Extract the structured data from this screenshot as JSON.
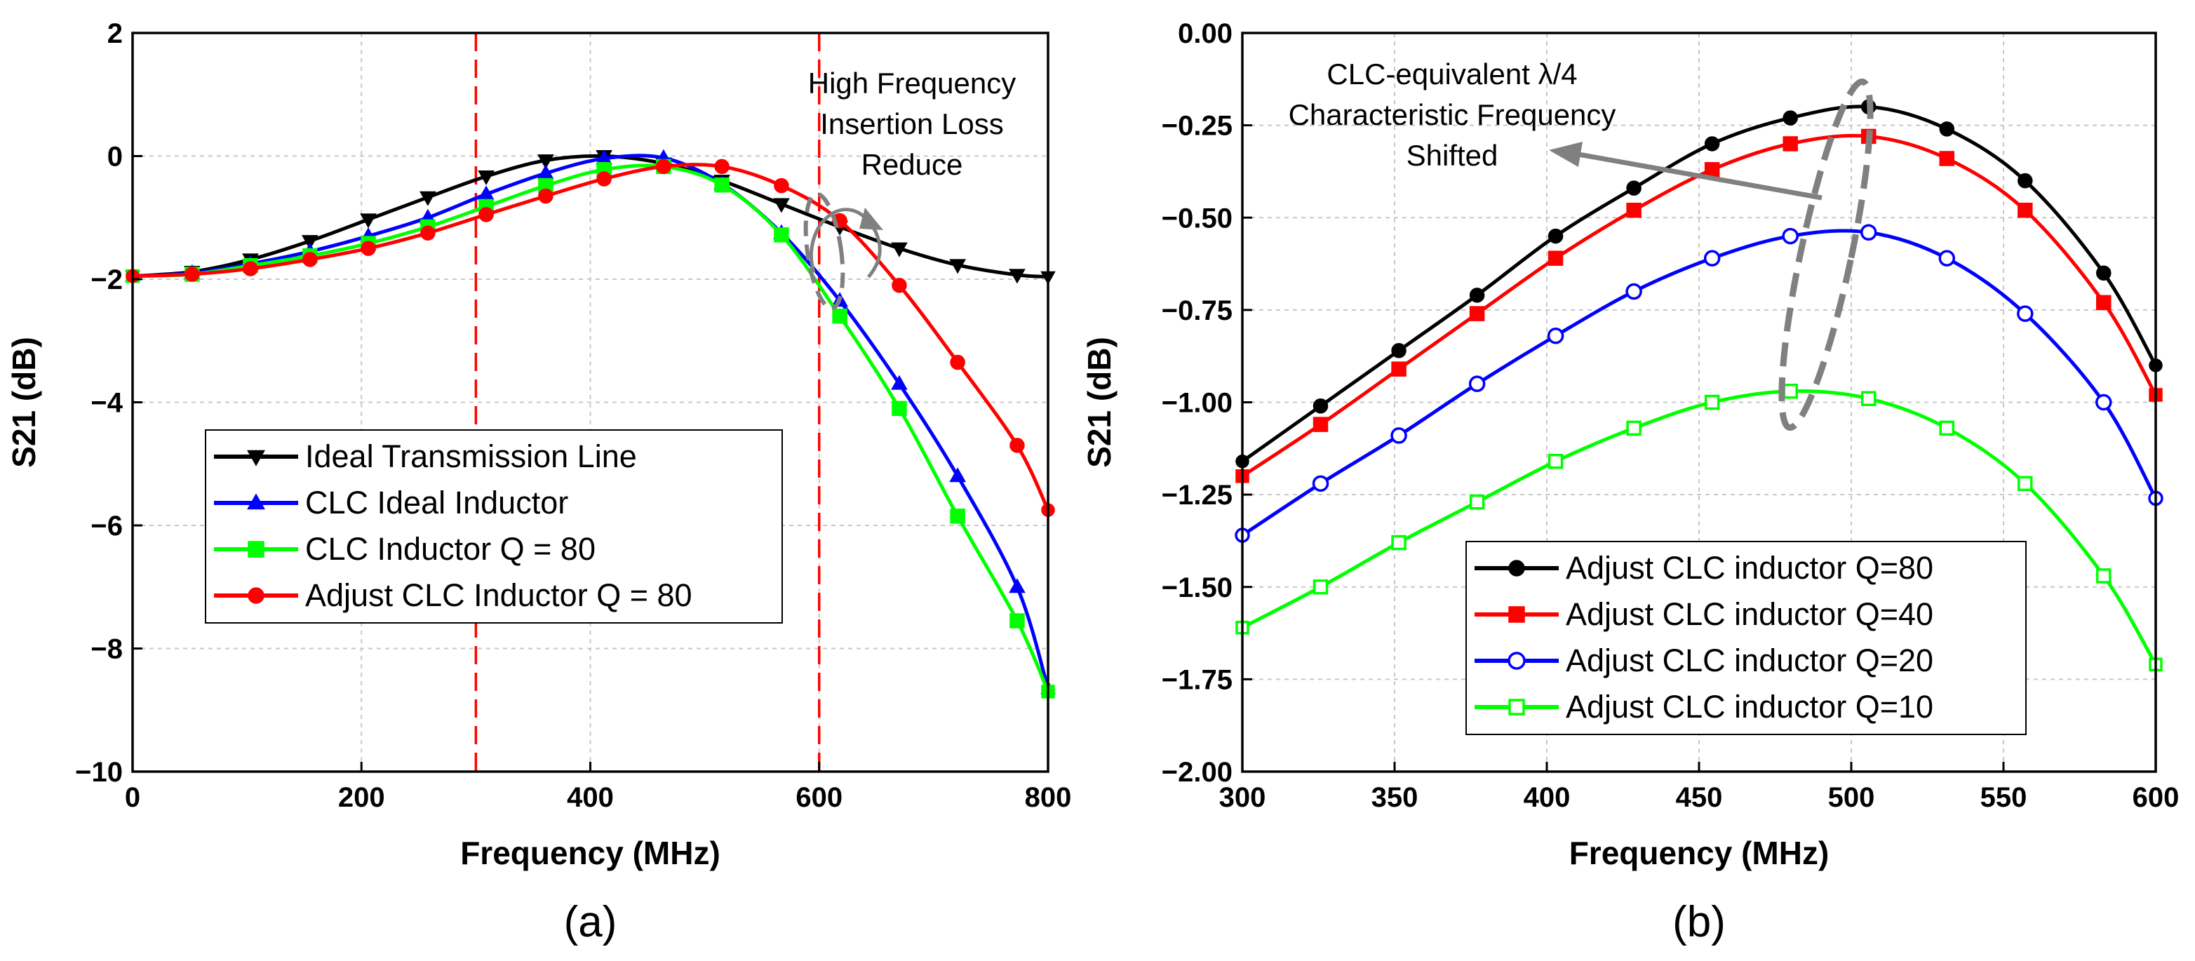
{
  "chart_data": [
    {
      "panel": "(a)",
      "type": "line",
      "xlabel": "Frequency (MHz)",
      "ylabel": "S21 (dB)",
      "xlim": [
        0,
        800
      ],
      "ylim": [
        -10,
        2
      ],
      "xticks": [
        0,
        200,
        400,
        600,
        800
      ],
      "yticks": [
        -10,
        -8,
        -6,
        -4,
        -2,
        0,
        2
      ],
      "tick_labels_x": [
        "0",
        "200",
        "400",
        "600",
        "800"
      ],
      "tick_labels_y": [
        "−10",
        "−8",
        "−6",
        "−4",
        "−2",
        "0",
        "2"
      ],
      "grid": true,
      "legend_position": "bottom-left",
      "vlines": [
        300,
        600
      ],
      "annotation": {
        "lines": [
          "High Frequency",
          "Insertion Loss",
          "Reduce"
        ],
        "near_x": 600,
        "near_y": -1.5
      },
      "series": [
        {
          "name": "Ideal Transmission Line",
          "color": "#000000",
          "marker": "triangle-down",
          "x": [
            0,
            52,
            103,
            155,
            206,
            258,
            309,
            361,
            412,
            464,
            515,
            567,
            618,
            670,
            721,
            773,
            800
          ],
          "y": [
            -1.95,
            -1.88,
            -1.68,
            -1.38,
            -1.03,
            -0.67,
            -0.33,
            -0.07,
            0.0,
            -0.12,
            -0.4,
            -0.78,
            -1.15,
            -1.5,
            -1.77,
            -1.93,
            -1.96
          ]
        },
        {
          "name": "CLC Ideal Inductor",
          "color": "#0000ff",
          "marker": "triangle-up",
          "x": [
            0,
            52,
            103,
            155,
            206,
            258,
            309,
            361,
            412,
            464,
            515,
            567,
            618,
            670,
            721,
            773,
            800
          ],
          "y": [
            -1.95,
            -1.9,
            -1.75,
            -1.55,
            -1.3,
            -1.0,
            -0.62,
            -0.28,
            -0.04,
            -0.03,
            -0.45,
            -1.25,
            -2.35,
            -3.7,
            -5.2,
            -7.0,
            -8.65
          ]
        },
        {
          "name": "CLC Inductor Q = 80",
          "color": "#00ff00",
          "marker": "square",
          "x": [
            0,
            52,
            103,
            155,
            206,
            258,
            309,
            361,
            412,
            464,
            515,
            567,
            618,
            670,
            721,
            773,
            800
          ],
          "y": [
            -1.95,
            -1.92,
            -1.78,
            -1.62,
            -1.42,
            -1.15,
            -0.82,
            -0.48,
            -0.22,
            -0.17,
            -0.47,
            -1.28,
            -2.6,
            -4.1,
            -5.85,
            -7.55,
            -8.7
          ]
        },
        {
          "name": "Adjust CLC Inductor Q = 80",
          "color": "#ff0000",
          "marker": "circle",
          "x": [
            0,
            52,
            103,
            155,
            206,
            258,
            309,
            361,
            412,
            464,
            515,
            567,
            618,
            670,
            721,
            773,
            800
          ],
          "y": [
            -1.95,
            -1.92,
            -1.83,
            -1.68,
            -1.5,
            -1.25,
            -0.95,
            -0.65,
            -0.37,
            -0.17,
            -0.17,
            -0.48,
            -1.05,
            -2.1,
            -3.35,
            -4.7,
            -5.75
          ]
        }
      ]
    },
    {
      "panel": "(b)",
      "type": "line",
      "xlabel": "Frequency (MHz)",
      "ylabel": "S21 (dB)",
      "xlim": [
        300,
        600
      ],
      "ylim": [
        -2.0,
        0.0
      ],
      "xticks": [
        300,
        350,
        400,
        450,
        500,
        550,
        600
      ],
      "yticks": [
        -2.0,
        -1.75,
        -1.5,
        -1.25,
        -1.0,
        -0.75,
        -0.5,
        -0.25,
        0.0
      ],
      "tick_labels_x": [
        "300",
        "350",
        "400",
        "450",
        "500",
        "550",
        "600"
      ],
      "tick_labels_y": [
        "−2.00",
        "−1.75",
        "−1.50",
        "−1.25",
        "−1.00",
        "−0.75",
        "−0.50",
        "−0.25",
        "0.00"
      ],
      "grid": true,
      "legend_position": "bottom-center",
      "annotation": {
        "lines": [
          "CLC-equivalent λ/4",
          "Characteristic Frequency",
          "Shifted"
        ],
        "near_x": 490,
        "near_y": -0.45
      },
      "series": [
        {
          "name": "Adjust CLC inductor Q=80",
          "color": "#000000",
          "marker": "circle",
          "x": [
            300,
            325.7,
            351.4,
            377.1,
            402.9,
            428.6,
            454.3,
            480,
            505.7,
            531.4,
            557.1,
            582.9,
            600
          ],
          "y": [
            -1.16,
            -1.01,
            -0.86,
            -0.71,
            -0.55,
            -0.42,
            -0.3,
            -0.23,
            -0.2,
            -0.26,
            -0.4,
            -0.65,
            -0.9
          ]
        },
        {
          "name": "Adjust CLC inductor Q=40",
          "color": "#ff0000",
          "marker": "square",
          "x": [
            300,
            325.7,
            351.4,
            377.1,
            402.9,
            428.6,
            454.3,
            480,
            505.7,
            531.4,
            557.1,
            582.9,
            600
          ],
          "y": [
            -1.2,
            -1.06,
            -0.91,
            -0.76,
            -0.61,
            -0.48,
            -0.37,
            -0.3,
            -0.28,
            -0.34,
            -0.48,
            -0.73,
            -0.98
          ]
        },
        {
          "name": "Adjust CLC inductor Q=20",
          "color": "#0000ff",
          "marker": "circle-open",
          "x": [
            300,
            325.7,
            351.4,
            377.1,
            402.9,
            428.6,
            454.3,
            480,
            505.7,
            531.4,
            557.1,
            582.9,
            600
          ],
          "y": [
            -1.36,
            -1.22,
            -1.09,
            -0.95,
            -0.82,
            -0.7,
            -0.61,
            -0.55,
            -0.54,
            -0.61,
            -0.76,
            -1.0,
            -1.26
          ]
        },
        {
          "name": "Adjust CLC inductor Q=10",
          "color": "#00ff00",
          "marker": "square-open",
          "x": [
            300,
            325.7,
            351.4,
            377.1,
            402.9,
            428.6,
            454.3,
            480,
            505.7,
            531.4,
            557.1,
            582.9,
            600
          ],
          "y": [
            -1.61,
            -1.5,
            -1.38,
            -1.27,
            -1.16,
            -1.07,
            -1.0,
            -0.97,
            -0.99,
            -1.07,
            -1.22,
            -1.47,
            -1.71
          ]
        }
      ]
    }
  ]
}
